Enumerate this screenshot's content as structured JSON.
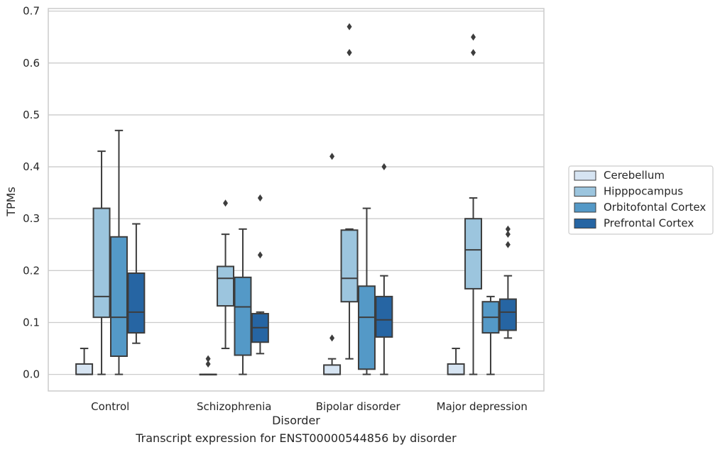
{
  "chart_data": {
    "type": "box",
    "caption": "Transcript expression for ENST00000544856 by disorder",
    "xlabel": "Disorder",
    "ylabel": "TPMs",
    "ylim": [
      -0.032,
      0.705
    ],
    "yticks": [
      0.0,
      0.1,
      0.2,
      0.3,
      0.4,
      0.5,
      0.6,
      0.7
    ],
    "ytick_labels": [
      "0.0",
      "0.1",
      "0.2",
      "0.3",
      "0.4",
      "0.5",
      "0.6",
      "0.7"
    ],
    "grid": "horizontal",
    "legend_placement": "center-right outside",
    "categories": [
      "Control",
      "Schizophrenia",
      "Bipolar disorder",
      "Major depression"
    ],
    "series": [
      {
        "name": "Cerebellum",
        "color": "#d6e4f2",
        "boxes": [
          {
            "whislo": 0.0,
            "q1": 0.0,
            "med": 0.0,
            "q3": 0.02,
            "whishi": 0.05,
            "fliers": []
          },
          {
            "whislo": 0.0,
            "q1": 0.0,
            "med": 0.0,
            "q3": 0.0,
            "whishi": 0.0,
            "fliers": [
              0.02,
              0.03
            ]
          },
          {
            "whislo": 0.0,
            "q1": 0.0,
            "med": 0.0,
            "q3": 0.018,
            "whishi": 0.03,
            "fliers": [
              0.07,
              0.42
            ]
          },
          {
            "whislo": 0.0,
            "q1": 0.0,
            "med": 0.0,
            "q3": 0.02,
            "whishi": 0.05,
            "fliers": []
          }
        ]
      },
      {
        "name": "Hipppocampus",
        "color": "#9cc5de",
        "boxes": [
          {
            "whislo": 0.0,
            "q1": 0.11,
            "med": 0.15,
            "q3": 0.32,
            "whishi": 0.43,
            "fliers": []
          },
          {
            "whislo": 0.05,
            "q1": 0.132,
            "med": 0.185,
            "q3": 0.208,
            "whishi": 0.27,
            "fliers": [
              0.33
            ]
          },
          {
            "whislo": 0.03,
            "q1": 0.14,
            "med": 0.185,
            "q3": 0.278,
            "whishi": 0.28,
            "fliers": [
              0.62,
              0.62,
              0.67
            ]
          },
          {
            "whislo": 0.0,
            "q1": 0.165,
            "med": 0.24,
            "q3": 0.3,
            "whishi": 0.34,
            "fliers": [
              0.62,
              0.65
            ]
          }
        ]
      },
      {
        "name": "Orbitofontal Cortex",
        "color": "#5499c7",
        "boxes": [
          {
            "whislo": 0.0,
            "q1": 0.035,
            "med": 0.11,
            "q3": 0.265,
            "whishi": 0.47,
            "fliers": []
          },
          {
            "whislo": 0.0,
            "q1": 0.037,
            "med": 0.13,
            "q3": 0.187,
            "whishi": 0.28,
            "fliers": []
          },
          {
            "whislo": 0.0,
            "q1": 0.01,
            "med": 0.11,
            "q3": 0.17,
            "whishi": 0.32,
            "fliers": []
          },
          {
            "whislo": 0.0,
            "q1": 0.08,
            "med": 0.11,
            "q3": 0.14,
            "whishi": 0.15,
            "fliers": []
          }
        ]
      },
      {
        "name": "Prefrontal Cortex",
        "color": "#2665a3",
        "boxes": [
          {
            "whislo": 0.06,
            "q1": 0.08,
            "med": 0.12,
            "q3": 0.195,
            "whishi": 0.29,
            "fliers": []
          },
          {
            "whislo": 0.04,
            "q1": 0.062,
            "med": 0.09,
            "q3": 0.117,
            "whishi": 0.12,
            "fliers": [
              0.23,
              0.34
            ]
          },
          {
            "whislo": 0.0,
            "q1": 0.072,
            "med": 0.105,
            "q3": 0.15,
            "whishi": 0.19,
            "fliers": [
              0.4
            ]
          },
          {
            "whislo": 0.07,
            "q1": 0.085,
            "med": 0.12,
            "q3": 0.145,
            "whishi": 0.19,
            "fliers": [
              0.25,
              0.27,
              0.28
            ]
          }
        ]
      }
    ]
  }
}
